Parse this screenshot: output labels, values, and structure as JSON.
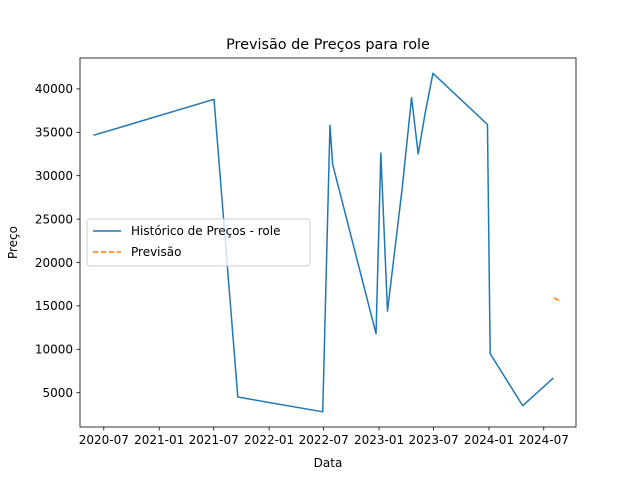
{
  "chart_data": {
    "type": "line",
    "title": "Previsão de Preços para role",
    "xlabel": "Data",
    "ylabel": "Preço",
    "x_ticks": [
      {
        "date": "2020-07-01",
        "label": "2020-07"
      },
      {
        "date": "2021-01-01",
        "label": "2021-01"
      },
      {
        "date": "2021-07-01",
        "label": "2021-07"
      },
      {
        "date": "2022-01-01",
        "label": "2022-01"
      },
      {
        "date": "2022-07-01",
        "label": "2022-07"
      },
      {
        "date": "2023-01-01",
        "label": "2023-01"
      },
      {
        "date": "2023-07-01",
        "label": "2023-07"
      },
      {
        "date": "2024-01-01",
        "label": "2024-01"
      },
      {
        "date": "2024-07-01",
        "label": "2024-07"
      }
    ],
    "xlim": [
      "2020-04-13",
      "2024-10-16"
    ],
    "y_ticks": [
      5000,
      10000,
      15000,
      20000,
      25000,
      30000,
      35000,
      40000
    ],
    "ylim": [
      1050,
      43560
    ],
    "grid": false,
    "legend_position": "center-left",
    "series": [
      {
        "name": "Histórico de Preços - role",
        "color": "#1f77b4",
        "style": "solid",
        "points": [
          {
            "x": "2020-05-28",
            "y": 34650
          },
          {
            "x": "2021-07-02",
            "y": 38800
          },
          {
            "x": "2021-09-19",
            "y": 4500
          },
          {
            "x": "2022-06-28",
            "y": 2800
          },
          {
            "x": "2022-07-22",
            "y": 35800
          },
          {
            "x": "2022-07-31",
            "y": 31300
          },
          {
            "x": "2022-12-22",
            "y": 11800
          },
          {
            "x": "2023-01-07",
            "y": 32600
          },
          {
            "x": "2023-01-29",
            "y": 14400
          },
          {
            "x": "2023-03-19",
            "y": 28600
          },
          {
            "x": "2023-04-19",
            "y": 39000
          },
          {
            "x": "2023-05-11",
            "y": 32500
          },
          {
            "x": "2023-06-03",
            "y": 37200
          },
          {
            "x": "2023-06-29",
            "y": 41800
          },
          {
            "x": "2023-12-27",
            "y": 35900
          },
          {
            "x": "2024-01-05",
            "y": 9500
          },
          {
            "x": "2024-04-22",
            "y": 3500
          },
          {
            "x": "2024-08-02",
            "y": 6700
          }
        ]
      },
      {
        "name": "Previsão",
        "color": "#ff7f0e",
        "style": "dashed",
        "points": [
          {
            "x": "2024-08-04",
            "y": 15900
          },
          {
            "x": "2024-08-23",
            "y": 15600
          }
        ]
      }
    ]
  }
}
